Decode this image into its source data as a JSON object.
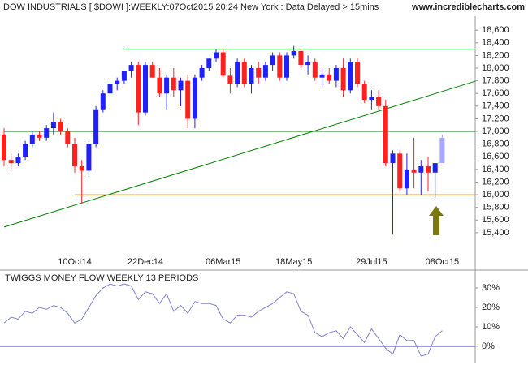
{
  "chart_data": [
    {
      "type": "candlestick",
      "title": "DOW INDUSTRIALS [ $DOWI ]:WEEKLY:07Oct2015 20:24 New York : Data Delayed > 15mins",
      "source": "www.incrediblecharts.com",
      "categories": [
        null,
        null,
        null,
        null,
        null,
        null,
        null,
        null,
        null,
        null,
        "10Oct14",
        null,
        null,
        null,
        null,
        null,
        null,
        null,
        null,
        null,
        "22Dec14",
        null,
        null,
        null,
        null,
        null,
        null,
        null,
        null,
        null,
        null,
        "06Mar15",
        null,
        null,
        null,
        null,
        null,
        null,
        null,
        null,
        null,
        "18May15",
        null,
        null,
        null,
        null,
        null,
        null,
        null,
        null,
        null,
        null,
        "29Jul15",
        null,
        null,
        null,
        null,
        null,
        null,
        null,
        null,
        null,
        "08Oct15"
      ],
      "open": [
        16950,
        16550,
        16500,
        16600,
        16800,
        16950,
        16900,
        17050,
        17150,
        17000,
        16800,
        16450,
        16380,
        16800,
        17350,
        17600,
        17750,
        17800,
        17950,
        18050,
        17300,
        18050,
        17850,
        17600,
        17850,
        17650,
        17800,
        17200,
        17850,
        18000,
        18150,
        18250,
        17880,
        17750,
        18100,
        17750,
        18000,
        17850,
        18050,
        18200,
        17850,
        18200,
        18270,
        18050,
        18100,
        17850,
        17900,
        17800,
        18000,
        17650,
        18100,
        17750,
        17500,
        17550,
        17400,
        16500,
        16650,
        16100,
        16400,
        16350,
        16450,
        16350,
        16500
      ],
      "high": [
        17050,
        16650,
        16650,
        16850,
        17000,
        17000,
        17100,
        17300,
        17200,
        17050,
        16900,
        16550,
        16850,
        17400,
        17650,
        17800,
        17850,
        17950,
        18100,
        18100,
        18100,
        18100,
        18000,
        17900,
        18000,
        17850,
        17900,
        17900,
        18050,
        18150,
        18300,
        18300,
        18000,
        18150,
        18150,
        18050,
        18100,
        18100,
        18250,
        18250,
        18250,
        18350,
        18300,
        18200,
        18150,
        18000,
        18000,
        18050,
        18150,
        18150,
        18150,
        17800,
        17650,
        17650,
        17500,
        16700,
        16700,
        16650,
        16900,
        16550,
        16600,
        16500,
        16950
      ],
      "low": [
        16450,
        16400,
        16450,
        16550,
        16750,
        16850,
        16850,
        16950,
        16950,
        16750,
        16350,
        15860,
        16280,
        16750,
        17300,
        17550,
        17650,
        17750,
        17850,
        17100,
        17250,
        17850,
        17550,
        17350,
        17550,
        17400,
        17050,
        17050,
        17800,
        17950,
        18100,
        17850,
        17600,
        17700,
        17700,
        17600,
        17750,
        17800,
        17950,
        17800,
        17800,
        18150,
        18000,
        17900,
        17800,
        17700,
        17750,
        17700,
        17550,
        17600,
        17700,
        17450,
        17350,
        17350,
        16450,
        15370,
        16050,
        16000,
        16100,
        16000,
        16050,
        15950,
        16500
      ],
      "close": [
        16550,
        16500,
        16600,
        16800,
        16950,
        16900,
        17050,
        17150,
        17000,
        16800,
        16450,
        16380,
        16800,
        17350,
        17600,
        17750,
        17800,
        17950,
        18050,
        17300,
        18050,
        17850,
        17600,
        17850,
        17650,
        17800,
        17200,
        17850,
        18000,
        18150,
        18250,
        17880,
        17750,
        18100,
        17750,
        18000,
        17850,
        18050,
        18200,
        17850,
        18200,
        18270,
        18050,
        18100,
        17850,
        17900,
        17800,
        18000,
        17650,
        18100,
        17750,
        17500,
        17550,
        17400,
        16500,
        16650,
        16100,
        16400,
        16350,
        16450,
        16350,
        16500,
        16900
      ],
      "up_color": "#2020ff",
      "down_color": "#ff2020",
      "last_color": "#a8a8ff",
      "ylim": [
        15040,
        18820
      ],
      "yticks": [
        {
          "value": 15400,
          "label": "15,400"
        },
        {
          "value": 15600,
          "label": "15,600"
        },
        {
          "value": 15800,
          "label": "15,800"
        },
        {
          "value": 16000,
          "label": "16,000"
        },
        {
          "value": 16200,
          "label": "16,200"
        },
        {
          "value": 16400,
          "label": "16,400"
        },
        {
          "value": 16600,
          "label": "16,600"
        },
        {
          "value": 16800,
          "label": "16,800"
        },
        {
          "value": 17000,
          "label": "17,000"
        },
        {
          "value": 17200,
          "label": "17,200"
        },
        {
          "value": 17400,
          "label": "17,400"
        },
        {
          "value": 17600,
          "label": "17,600"
        },
        {
          "value": 17800,
          "label": "17,800"
        },
        {
          "value": 18000,
          "label": "18,000"
        },
        {
          "value": 18200,
          "label": "18,200"
        },
        {
          "value": 18400,
          "label": "18,400"
        },
        {
          "value": 18600,
          "label": "18,600"
        }
      ],
      "levels": [
        {
          "value": 18300,
          "start": 17,
          "color": "#008000"
        },
        {
          "value": 17000,
          "start": 0,
          "color": "#008000"
        },
        {
          "value": 16000,
          "start": 10,
          "color": "#e08000"
        }
      ],
      "trend_line": {
        "x": [
          0,
          66.7
        ],
        "y": [
          15490,
          17794
        ],
        "color": "#008000"
      }
    },
    {
      "type": "line",
      "title": "TWIGGS MONEY FLOW WEEKLY 13 PERIODS",
      "color": "#8080d0",
      "zero_color": "#4040c0",
      "values": [
        12,
        15,
        14,
        18,
        17,
        20,
        19,
        21,
        20,
        17,
        12,
        14,
        20,
        26,
        30,
        32,
        31,
        32,
        31,
        24,
        28,
        27,
        22,
        27,
        18,
        21,
        17,
        23,
        22,
        22,
        21,
        14,
        12,
        16,
        16,
        15,
        18,
        20,
        22,
        25,
        28,
        27,
        18,
        16,
        7,
        5,
        7,
        8,
        4,
        10,
        6,
        2,
        9,
        4,
        -1,
        -4,
        6,
        3,
        3,
        -5,
        -4,
        5,
        8
      ],
      "ylim": [
        -8.75,
        37.5
      ],
      "yticks": [
        {
          "value": 0,
          "label": "0%"
        },
        {
          "value": 10,
          "label": "10%"
        },
        {
          "value": 20,
          "label": "20%"
        },
        {
          "value": 30,
          "label": "30%"
        }
      ]
    }
  ]
}
